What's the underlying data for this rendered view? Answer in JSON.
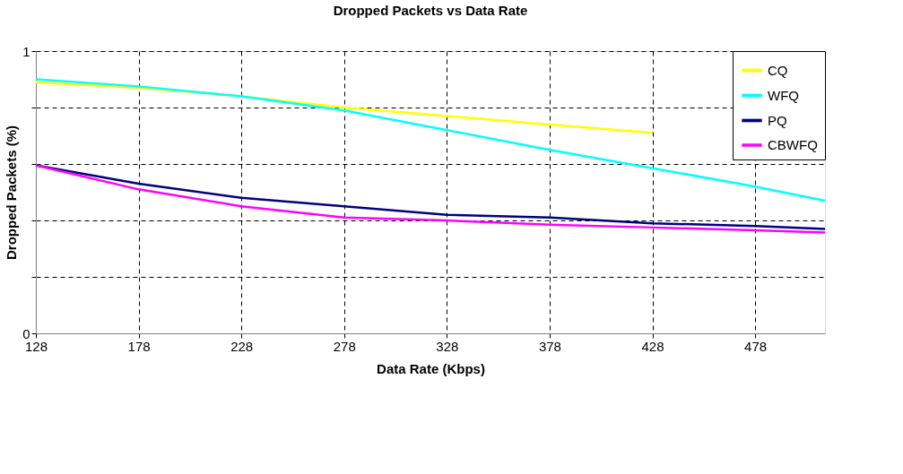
{
  "chart_data": {
    "type": "line",
    "title": "Dropped Packets vs Data Rate",
    "xlabel": "Data Rate (Kbps)",
    "ylabel": "Dropped Packets (%)",
    "x": [
      128,
      178,
      228,
      278,
      328,
      378,
      428,
      478,
      512
    ],
    "series": [
      {
        "name": "CQ",
        "color": "#ffff00",
        "values": [
          0.89,
          0.87,
          0.84,
          0.8,
          0.77,
          0.74,
          0.71,
          null,
          null
        ]
      },
      {
        "name": "WFQ",
        "color": "#00ffff",
        "values": [
          0.9,
          0.875,
          0.84,
          0.79,
          0.72,
          0.65,
          0.585,
          0.52,
          0.47
        ]
      },
      {
        "name": "PQ",
        "color": "#000080",
        "values": [
          0.595,
          0.53,
          0.48,
          0.45,
          0.42,
          0.41,
          0.39,
          0.38,
          0.37
        ]
      },
      {
        "name": "CBWFQ",
        "color": "#ff00ff",
        "values": [
          0.595,
          0.51,
          0.45,
          0.41,
          0.4,
          0.385,
          0.375,
          0.365,
          0.357
        ]
      }
    ],
    "xlim": [
      128,
      512
    ],
    "xticks": [
      128,
      178,
      228,
      278,
      328,
      378,
      428,
      478
    ],
    "ylim": [
      0,
      1
    ],
    "yticks": [
      0,
      {
        "value": 0.2,
        "label": null
      },
      {
        "value": 0.4,
        "label": null
      },
      {
        "value": 0.6,
        "label": null
      },
      {
        "value": 0.8,
        "label": null
      },
      1
    ],
    "grid": true,
    "legend": "top right",
    "marker": "none",
    "line_style": "solid"
  }
}
